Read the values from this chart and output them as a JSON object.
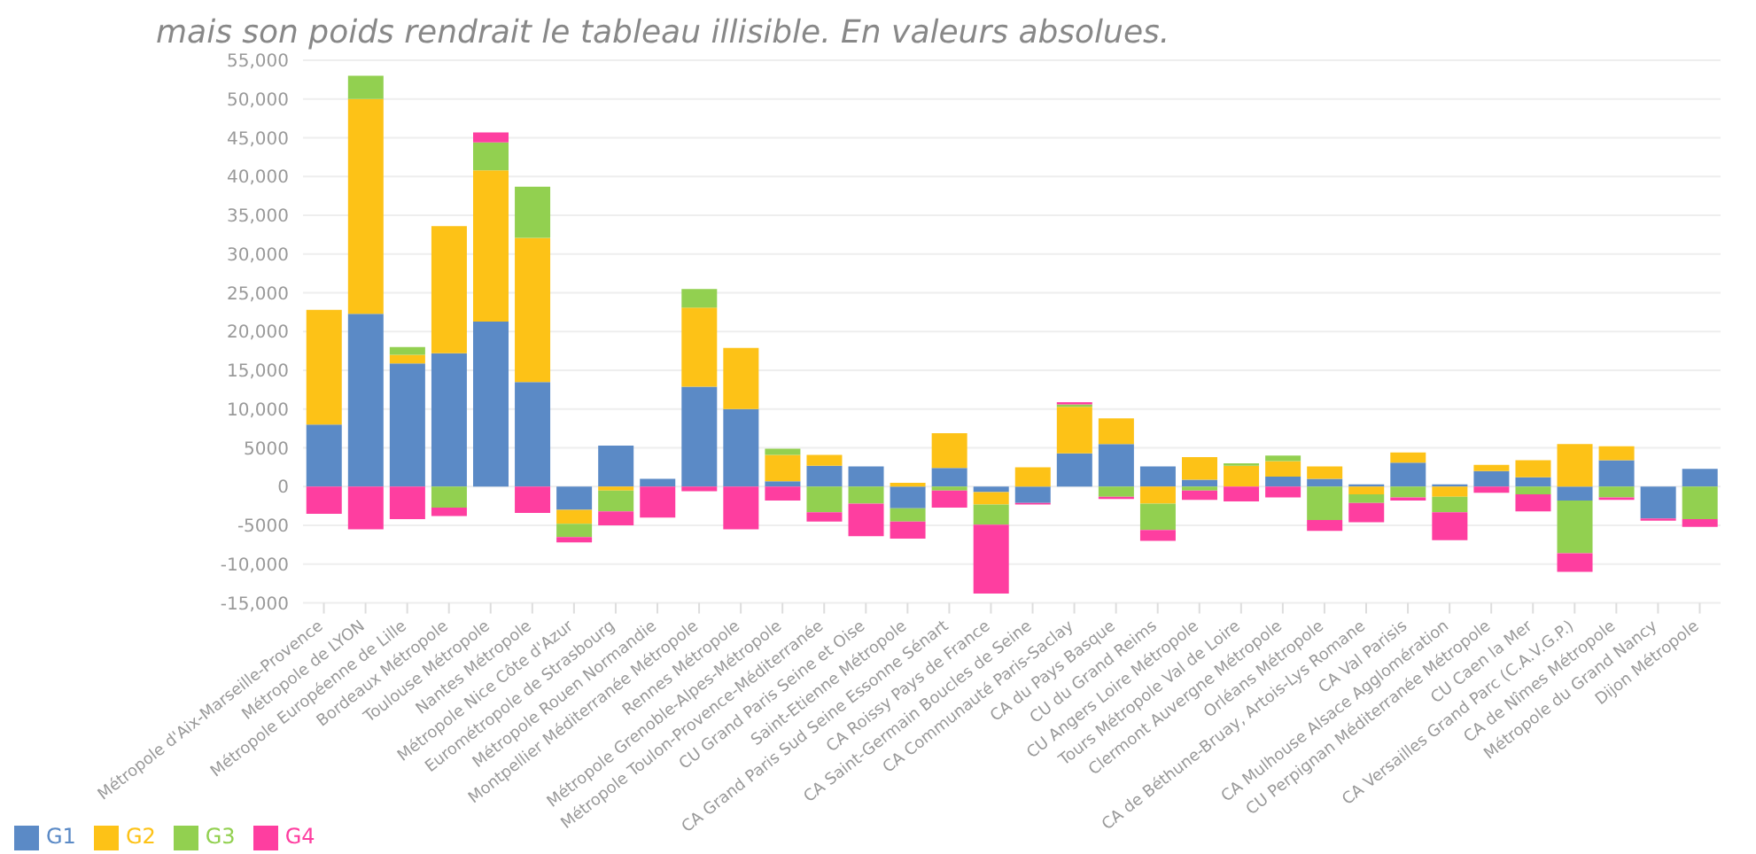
{
  "chart_data": {
    "type": "bar",
    "stacked": true,
    "title": "mais son poids rendrait le tableau illisible. En valeurs absolues.",
    "categories": [
      "Métropole d'Aix-Marseille-Provence",
      "Métropole de LYON",
      "Métropole Européenne de Lille",
      "Bordeaux Métropole",
      "Toulouse Métropole",
      "Nantes Métropole",
      "Métropole Nice Côte d'Azur",
      "Eurométropole de Strasbourg",
      "Métropole Rouen Normandie",
      "Montpellier Méditerranée Métropole",
      "Rennes Métropole",
      "Métropole Grenoble-Alpes-Métropole",
      "Métropole Toulon-Provence-Méditerranée",
      "CU Grand Paris Seine et Oise",
      "Saint-Etienne Métropole",
      "CA Grand Paris Sud Seine Essonne Sénart",
      "CA Roissy Pays de France",
      "CA Saint-Germain Boucles de Seine",
      "CA Communauté Paris-Saclay",
      "CA du Pays Basque",
      "CU du Grand Reims",
      "CU Angers Loire Métropole",
      "Tours Métropole Val de Loire",
      "Clermont Auvergne Métropole",
      "Orléans Métropole",
      "CA de Béthune-Bruay, Artois-Lys Romane",
      "CA Val Parisis",
      "CA Mulhouse Alsace Agglomération",
      "CU Perpignan Méditerranée Métropole",
      "CU Caen la Mer",
      "CA Versailles Grand Parc (C.A.V.G.P.)",
      "CA de Nîmes Métropole",
      "Métropole du Grand Nancy",
      "Dijon Métropole"
    ],
    "series": [
      {
        "name": "G1",
        "color": "#5b8ac6",
        "values": [
          8000,
          22300,
          15900,
          17200,
          21300,
          13500,
          -3000,
          5300,
          1000,
          12900,
          10000,
          700,
          2700,
          2600,
          -2800,
          2400,
          -700,
          -2100,
          4300,
          5500,
          2600,
          900,
          0,
          1300,
          1000,
          300,
          3100,
          300,
          2000,
          1200,
          -1800,
          3400,
          -4100,
          2300
        ]
      },
      {
        "name": "G2",
        "color": "#fdc217",
        "values": [
          14800,
          27700,
          1100,
          16400,
          19500,
          18600,
          -1800,
          -500,
          0,
          10200,
          7900,
          3400,
          1400,
          0,
          500,
          4500,
          -1600,
          2500,
          6000,
          3300,
          -2200,
          2900,
          2700,
          2000,
          1600,
          -1000,
          1300,
          -1300,
          800,
          2200,
          5500,
          1800,
          0,
          0
        ]
      },
      {
        "name": "G3",
        "color": "#92d050",
        "values": [
          0,
          3000,
          1000,
          -2700,
          3600,
          6600,
          -1700,
          -2700,
          0,
          2400,
          0,
          800,
          -3300,
          -2200,
          -1700,
          -500,
          -2600,
          0,
          300,
          -1300,
          -3400,
          -500,
          300,
          700,
          -4300,
          -1100,
          -1400,
          -2000,
          0,
          -1000,
          -6800,
          -1400,
          0,
          -4200
        ]
      },
      {
        "name": "G4",
        "color": "#fe3ea0",
        "values": [
          -3500,
          -5500,
          -4200,
          -1100,
          1300,
          -3400,
          -700,
          -1800,
          -4000,
          -600,
          -5500,
          -1800,
          -1200,
          -4200,
          -2200,
          -2200,
          -8900,
          -200,
          300,
          -300,
          -1400,
          -1200,
          -1900,
          -1400,
          -1400,
          -2500,
          -400,
          -3600,
          -800,
          -2200,
          -2400,
          -300,
          -300,
          -1000
        ]
      }
    ],
    "ylim": [
      -15000,
      55000
    ],
    "yticks": [
      {
        "value": -15000,
        "label": "-15,000"
      },
      {
        "value": -10000,
        "label": "-10,000"
      },
      -5000,
      0,
      5000,
      {
        "value": 10000,
        "label": "10,000"
      },
      {
        "value": 15000,
        "label": "15,000"
      },
      {
        "value": 20000,
        "label": "20,000"
      },
      {
        "value": 25000,
        "label": "25,000"
      },
      {
        "value": 30000,
        "label": "30,000"
      },
      {
        "value": 35000,
        "label": "35,000"
      },
      {
        "value": 40000,
        "label": "40,000"
      },
      {
        "value": 45000,
        "label": "45,000"
      },
      {
        "value": 50000,
        "label": "50,000"
      },
      {
        "value": 55000,
        "label": "55,000"
      }
    ],
    "grid": "y",
    "legend": "bottom left"
  }
}
